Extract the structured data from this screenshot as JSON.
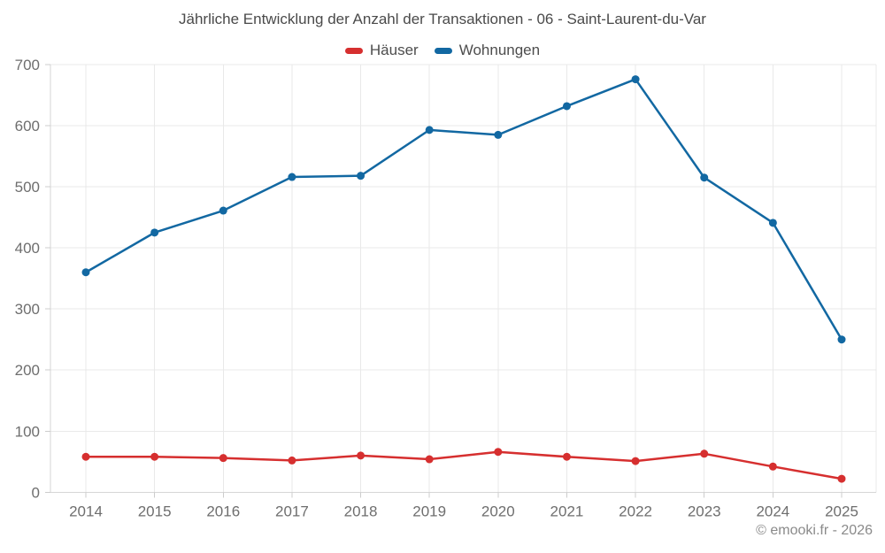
{
  "title": "Jährliche Entwicklung der Anzahl der Transaktionen - 06 - Saint-Laurent-du-Var",
  "footer": {
    "copyright": "© emooki.fr - 2026"
  },
  "chart_data": {
    "type": "line",
    "title": "Jährliche Entwicklung der Anzahl der Transaktionen - 06 - Saint-Laurent-du-Var",
    "x": [
      2014,
      2015,
      2016,
      2017,
      2018,
      2019,
      2020,
      2021,
      2022,
      2023,
      2024,
      2025
    ],
    "series": [
      {
        "name": "Häuser",
        "color": "#d62f2f",
        "values": [
          58,
          58,
          56,
          52,
          60,
          54,
          66,
          58,
          51,
          63,
          42,
          22
        ]
      },
      {
        "name": "Wohnungen",
        "color": "#1268a2",
        "values": [
          360,
          425,
          461,
          516,
          518,
          593,
          585,
          632,
          676,
          515,
          441,
          250
        ]
      }
    ],
    "xlabel": "",
    "ylabel": "",
    "ylim": [
      0,
      700
    ],
    "yticks": [
      0,
      100,
      200,
      300,
      400,
      500,
      600,
      700
    ],
    "grid": true,
    "legend_position": "top",
    "marker": "circle"
  }
}
